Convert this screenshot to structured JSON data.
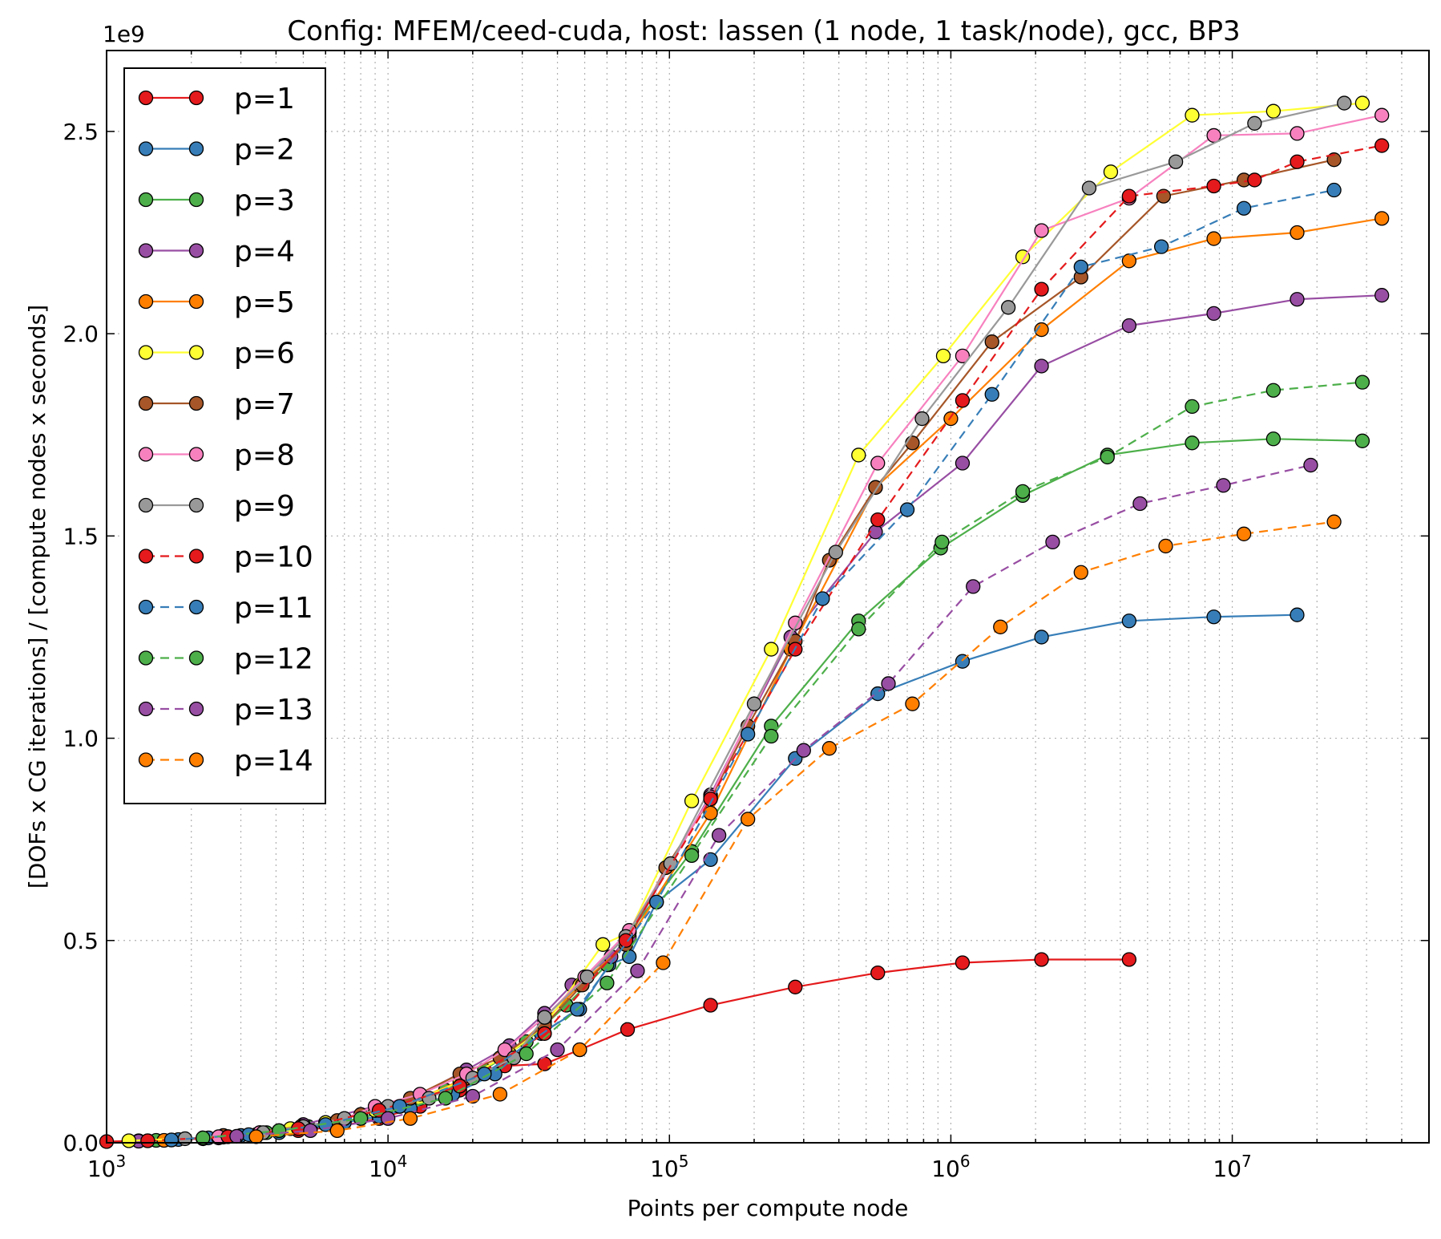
{
  "chart_data": {
    "type": "line",
    "title": "Config: MFEM/ceed-cuda, host: lassen (1 node, 1 task/node), gcc, BP3",
    "xlabel": "Points per compute node",
    "ylabel": "[DOFs x CG iterations] / [compute nodes x seconds]",
    "x_scale": "log",
    "xlim": [
      1000,
      50000000
    ],
    "ylim": [
      0,
      2700000000.0
    ],
    "y_offset_label": "1e9",
    "x_ticks": [
      {
        "value": 1000,
        "base": "10",
        "exp": "3"
      },
      {
        "value": 10000,
        "base": "10",
        "exp": "4"
      },
      {
        "value": 100000,
        "base": "10",
        "exp": "5"
      },
      {
        "value": 1000000,
        "base": "10",
        "exp": "6"
      },
      {
        "value": 10000000,
        "base": "10",
        "exp": "7"
      }
    ],
    "y_ticks": [
      {
        "value": 0,
        "label": "0.0"
      },
      {
        "value": 500000000.0,
        "label": "0.5"
      },
      {
        "value": 1000000000.0,
        "label": "1.0"
      },
      {
        "value": 1500000000.0,
        "label": "1.5"
      },
      {
        "value": 2000000000.0,
        "label": "2.0"
      },
      {
        "value": 2500000000.0,
        "label": "2.5"
      }
    ],
    "grid": true,
    "legend_position": "top-left",
    "series": [
      {
        "name": "p=1",
        "color": "#e41a1c",
        "dashed": false,
        "x": [
          1000,
          1300,
          1700,
          2200,
          2600,
          3400,
          4800,
          6600,
          9300,
          13000,
          18000,
          26000,
          36000,
          48000,
          71000,
          140000,
          280000,
          550000,
          1100000,
          2100000,
          4300000
        ],
        "y": [
          3000000.0,
          5000000.0,
          7000000.0,
          10000000.0,
          15000000.0,
          20000000.0,
          30000000.0,
          40000000.0,
          60000000.0,
          90000000.0,
          130000000.0,
          190000000.0,
          195000000.0,
          230000000.0,
          280000000.0,
          340000000.0,
          385000000.0,
          420000000.0,
          445000000.0,
          453000000.0,
          453000000.0
        ]
      },
      {
        "name": "p=2",
        "color": "#377eb8",
        "dashed": false,
        "x": [
          1400,
          1800,
          2300,
          3000,
          4100,
          5300,
          7000,
          9300,
          12000,
          17000,
          24000,
          35000,
          48000,
          61000,
          72000,
          90000,
          140000,
          280000,
          550000,
          1100000,
          2100000,
          4300000,
          8600000,
          17000000
        ],
        "y": [
          5000000.0,
          8000000.0,
          12000000.0,
          18000000.0,
          25000000.0,
          35000000.0,
          50000000.0,
          65000000.0,
          85000000.0,
          120000000.0,
          170000000.0,
          270000000.0,
          330000000.0,
          440000000.0,
          460000000.0,
          595000000.0,
          700000000.0,
          950000000.0,
          1110000000.0,
          1190000000.0,
          1250000000.0,
          1290000000.0,
          1300000000.0,
          1305000000.0
        ]
      },
      {
        "name": "p=3",
        "color": "#4daf4a",
        "dashed": false,
        "x": [
          1500,
          2200,
          3700,
          5200,
          8000,
          11000,
          16000,
          22000,
          31000,
          43000,
          60000,
          72000,
          120000,
          230000,
          470000,
          920000,
          1800000,
          3600000,
          7200000,
          14000000,
          29000000
        ],
        "y": [
          6000000.0,
          12000000.0,
          25000000.0,
          40000000.0,
          60000000.0,
          90000000.0,
          130000000.0,
          180000000.0,
          250000000.0,
          340000000.0,
          440000000.0,
          520000000.0,
          720000000.0,
          1030000000.0,
          1290000000.0,
          1470000000.0,
          1600000000.0,
          1700000000.0,
          1730000000.0,
          1740000000.0,
          1735000000.0
        ]
      },
      {
        "name": "p=4",
        "color": "#984ea3",
        "dashed": false,
        "x": [
          1300,
          2500,
          3500,
          5000,
          9000,
          13000,
          19000,
          27000,
          36000,
          45000,
          62000,
          72000,
          140000,
          270000,
          540000,
          1100000,
          2100000,
          4300000,
          8600000,
          17000000,
          34000000
        ],
        "y": [
          4000000.0,
          12000000.0,
          25000000.0,
          45000000.0,
          90000000.0,
          120000000.0,
          180000000.0,
          240000000.0,
          320000000.0,
          390000000.0,
          460000000.0,
          510000000.0,
          860000000.0,
          1250000000.0,
          1510000000.0,
          1680000000.0,
          1920000000.0,
          2020000000.0,
          2050000000.0,
          2085000000.0,
          2095000000.0
        ]
      },
      {
        "name": "p=5",
        "color": "#ff7f00",
        "dashed": false,
        "x": [
          1600,
          2600,
          4100,
          6000,
          9000,
          13000,
          19000,
          27000,
          36000,
          48000,
          70000,
          140000,
          270000,
          540000,
          1000000,
          2100000,
          4300000,
          8600000,
          17000000,
          34000000
        ],
        "y": [
          6000000.0,
          14000000.0,
          30000000.0,
          50000000.0,
          80000000.0,
          110000000.0,
          160000000.0,
          220000000.0,
          300000000.0,
          390000000.0,
          490000000.0,
          815000000.0,
          1220000000.0,
          1620000000.0,
          1790000000.0,
          2010000000.0,
          2180000000.0,
          2235000000.0,
          2250000000.0,
          2285000000.0
        ]
      },
      {
        "name": "p=6",
        "color": "#ffff33",
        "dashed": false,
        "x": [
          1200,
          2700,
          4500,
          6000,
          9000,
          13000,
          18000,
          27000,
          36000,
          58000,
          72000,
          120000,
          230000,
          470000,
          940000,
          1800000,
          3700000,
          7200000,
          14000000,
          29000000
        ],
        "y": [
          5000000.0,
          15000000.0,
          35000000.0,
          50000000.0,
          80000000.0,
          110000000.0,
          150000000.0,
          220000000.0,
          290000000.0,
          490000000.0,
          520000000.0,
          845000000.0,
          1220000000.0,
          1700000000.0,
          1945000000.0,
          2190000000.0,
          2400000000.0,
          2540000000.0,
          2550000000.0,
          2570000000.0
        ]
      },
      {
        "name": "p=7",
        "color": "#a65628",
        "dashed": false,
        "x": [
          2600,
          4900,
          6600,
          8000,
          12000,
          18000,
          25000,
          36000,
          49000,
          70000,
          97000,
          140000,
          190000,
          280000,
          370000,
          540000,
          730000,
          1400000,
          2900000,
          5700000,
          11000000,
          23000000
        ],
        "y": [
          18000000.0,
          40000000.0,
          55000000.0,
          70000000.0,
          110000000.0,
          170000000.0,
          210000000.0,
          290000000.0,
          390000000.0,
          490000000.0,
          680000000.0,
          850000000.0,
          1030000000.0,
          1240000000.0,
          1440000000.0,
          1620000000.0,
          1730000000.0,
          1980000000.0,
          2140000000.0,
          2340000000.0,
          2380000000.0,
          2430000000.0
        ]
      },
      {
        "name": "p=8",
        "color": "#f781bf",
        "dashed": false,
        "x": [
          2500,
          3500,
          5000,
          7000,
          9000,
          13000,
          19000,
          26000,
          36000,
          50000,
          72000,
          140000,
          280000,
          550000,
          1100000,
          2100000,
          4300000,
          8600000,
          17000000,
          34000000
        ],
        "y": [
          15000000.0,
          25000000.0,
          40000000.0,
          60000000.0,
          90000000.0,
          120000000.0,
          170000000.0,
          230000000.0,
          310000000.0,
          410000000.0,
          525000000.0,
          855000000.0,
          1285000000.0,
          1680000000.0,
          1945000000.0,
          2255000000.0,
          2335000000.0,
          2490000000.0,
          2495000000.0,
          2540000000.0
        ]
      },
      {
        "name": "p=9",
        "color": "#999999",
        "dashed": false,
        "x": [
          1900,
          3600,
          5000,
          7000,
          10000,
          14000,
          20000,
          28000,
          36000,
          51000,
          70000,
          101000,
          200000,
          390000,
          790000,
          1600000,
          3100000,
          6300000,
          12000000,
          25000000
        ],
        "y": [
          10000000.0,
          25000000.0,
          40000000.0,
          60000000.0,
          90000000.0,
          110000000.0,
          160000000.0,
          210000000.0,
          310000000.0,
          410000000.0,
          510000000.0,
          690000000.0,
          1085000000.0,
          1460000000.0,
          1790000000.0,
          2065000000.0,
          2360000000.0,
          2425000000.0,
          2520000000.0,
          2570000000.0
        ]
      },
      {
        "name": "p=10",
        "color": "#e41a1c",
        "dashed": true,
        "x": [
          1400,
          2700,
          4800,
          9300,
          18000,
          36000,
          70000,
          140000,
          280000,
          550000,
          1100000,
          2100000,
          4300000,
          8600000,
          12000000,
          17000000,
          34000000
        ],
        "y": [
          5000000.0,
          15000000.0,
          35000000.0,
          80000000.0,
          140000000.0,
          270000000.0,
          500000000.0,
          850000000.0,
          1220000000.0,
          1540000000.0,
          1835000000.0,
          2110000000.0,
          2340000000.0,
          2365000000.0,
          2380000000.0,
          2425000000.0,
          2465000000.0
        ]
      },
      {
        "name": "p=11",
        "color": "#377eb8",
        "dashed": true,
        "x": [
          1700,
          3200,
          6000,
          11000,
          22000,
          47000,
          90000,
          190000,
          350000,
          700000,
          1400000,
          2900000,
          5600000,
          11000000,
          23000000
        ],
        "y": [
          7000000.0,
          20000000.0,
          45000000.0,
          90000000.0,
          170000000.0,
          330000000.0,
          595000000.0,
          1010000000.0,
          1345000000.0,
          1565000000.0,
          1850000000.0,
          2165000000.0,
          2215000000.0,
          2310000000.0,
          2355000000.0
        ]
      },
      {
        "name": "p=12",
        "color": "#4daf4a",
        "dashed": true,
        "x": [
          2200,
          4100,
          8000,
          16000,
          31000,
          60000,
          120000,
          230000,
          470000,
          930000,
          1800000,
          3600000,
          7200000,
          14000000,
          29000000
        ],
        "y": [
          12000000.0,
          30000000.0,
          60000000.0,
          110000000.0,
          220000000.0,
          395000000.0,
          710000000.0,
          1005000000.0,
          1270000000.0,
          1485000000.0,
          1610000000.0,
          1695000000.0,
          1820000000.0,
          1860000000.0,
          1880000000.0
        ]
      },
      {
        "name": "p=13",
        "color": "#984ea3",
        "dashed": true,
        "x": [
          2900,
          5300,
          10000,
          20000,
          40000,
          77000,
          150000,
          300000,
          600000,
          1200000,
          2300000,
          4700000,
          9300000,
          19000000
        ],
        "y": [
          16000000.0,
          30000000.0,
          60000000.0,
          115000000.0,
          230000000.0,
          425000000.0,
          760000000.0,
          970000000.0,
          1135000000.0,
          1375000000.0,
          1485000000.0,
          1580000000.0,
          1625000000.0,
          1675000000.0
        ]
      },
      {
        "name": "p=14",
        "color": "#ff7f00",
        "dashed": true,
        "x": [
          3400,
          6600,
          12000,
          25000,
          48000,
          95000,
          190000,
          370000,
          730000,
          1500000,
          2900000,
          5800000,
          11000000,
          23000000
        ],
        "y": [
          15000000.0,
          30000000.0,
          60000000.0,
          120000000.0,
          230000000.0,
          445000000.0,
          800000000.0,
          975000000.0,
          1085000000.0,
          1275000000.0,
          1410000000.0,
          1475000000.0,
          1505000000.0,
          1535000000.0
        ]
      }
    ]
  }
}
